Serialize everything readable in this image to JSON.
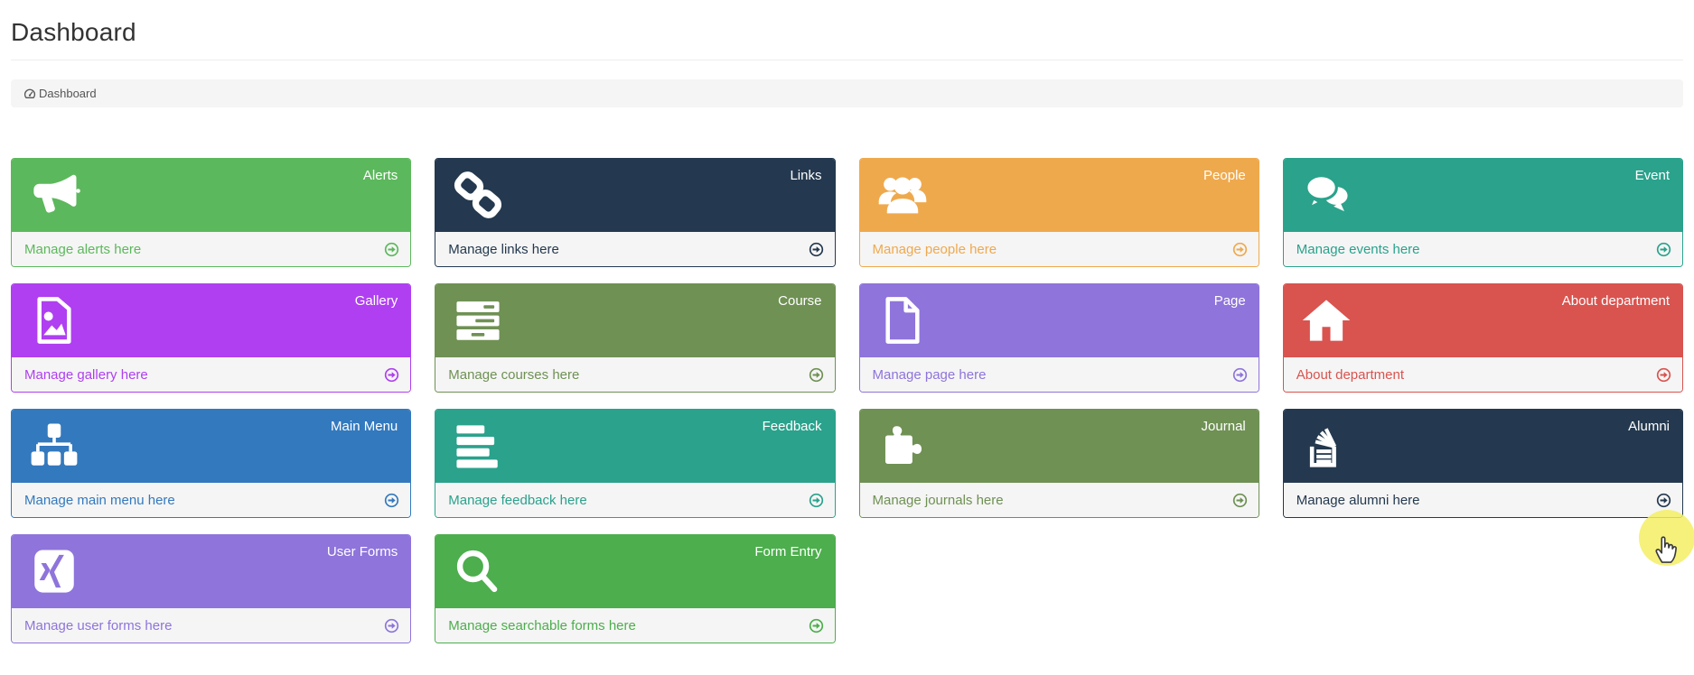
{
  "page": {
    "title": "Dashboard"
  },
  "breadcrumb": {
    "icon": "dashboard-gauge-icon",
    "label": "Dashboard"
  },
  "theme": {
    "footer_bg": "#f5f5f5",
    "breadcrumb_bg": "#f5f5f5",
    "header_border": "#ededed",
    "title_color": "#333333"
  },
  "cards": [
    {
      "title": "Alerts",
      "footer": "Manage alerts here",
      "icon": "bullhorn-icon",
      "color": "#5CB85C"
    },
    {
      "title": "Links",
      "footer": "Manage links here",
      "icon": "link-icon",
      "color": "#24394F"
    },
    {
      "title": "People",
      "footer": "Manage people here",
      "icon": "users-icon",
      "color": "#EFA94D"
    },
    {
      "title": "Event",
      "footer": "Manage events here",
      "icon": "comments-icon",
      "color": "#2AA28C"
    },
    {
      "title": "Gallery",
      "footer": "Manage gallery here",
      "icon": "image-icon",
      "color": "#AF3FF0"
    },
    {
      "title": "Course",
      "footer": "Manage courses here",
      "icon": "tasks-icon",
      "color": "#6F9154"
    },
    {
      "title": "Page",
      "footer": "Manage page here",
      "icon": "file-icon",
      "color": "#8E74DB"
    },
    {
      "title": "About department",
      "footer": "About department",
      "icon": "home-icon",
      "color": "#D9534F"
    },
    {
      "title": "Main Menu",
      "footer": "Manage main menu here",
      "icon": "sitemap-icon",
      "color": "#3379BE"
    },
    {
      "title": "Feedback",
      "footer": "Manage feedback here",
      "icon": "align-left-icon",
      "color": "#2AA28C"
    },
    {
      "title": "Journal",
      "footer": "Manage journals here",
      "icon": "puzzle-piece-icon",
      "color": "#6F9154"
    },
    {
      "title": "Alumni",
      "footer": "Manage alumni here",
      "icon": "stack-overflow-icon",
      "color": "#24394F"
    },
    {
      "title": "User Forms",
      "footer": "Manage user forms here",
      "icon": "xing-icon",
      "color": "#8E74DB"
    },
    {
      "title": "Form Entry",
      "footer": "Manage searchable forms here",
      "icon": "search-icon",
      "color": "#4CAE4C"
    }
  ],
  "footer_arrow_icon": "arrow-circle-right-icon",
  "cursor": {
    "icon": "hand-pointer-cursor",
    "highlight_color": "rgba(243,238,100,0.85)"
  }
}
